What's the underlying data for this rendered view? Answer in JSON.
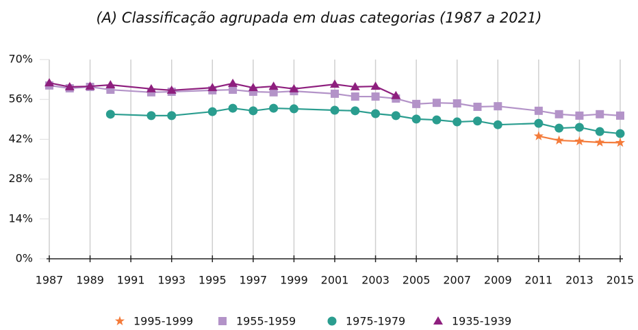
{
  "chart_data": {
    "type": "line",
    "title": "(A) Classificação agrupada em duas categorias (1987 a 2021)",
    "xlim": [
      1987,
      2015
    ],
    "xticks": [
      1987,
      1989,
      1991,
      1993,
      1995,
      1997,
      1999,
      2001,
      2003,
      2005,
      2007,
      2009,
      2011,
      2013,
      2015
    ],
    "ylim": [
      0,
      70
    ],
    "yticks": [
      {
        "value": 0,
        "label": "0%"
      },
      {
        "value": 14,
        "label": "14%"
      },
      {
        "value": 28,
        "label": "28%"
      },
      {
        "value": 42,
        "label": "42%"
      },
      {
        "value": 56,
        "label": "56%"
      },
      {
        "value": 70,
        "label": "70%"
      }
    ],
    "grid": true,
    "legend": "bottom",
    "series": [
      {
        "name": "1995-1999",
        "color": "#f47b3a",
        "marker": "star",
        "x": [
          2011,
          2012,
          2013,
          2014,
          2015
        ],
        "values": [
          43.1,
          41.6,
          41.3,
          40.9,
          40.8
        ]
      },
      {
        "name": "1955-1959",
        "color": "#b393c8",
        "marker": "square",
        "x": [
          1987,
          1988,
          1989,
          1990,
          1992,
          1993,
          1995,
          1996,
          1997,
          1998,
          1999,
          2001,
          2002,
          2003,
          2004,
          2005,
          2006,
          2007,
          2008,
          2009,
          2011,
          2012,
          2013,
          2014,
          2015
        ],
        "values": [
          60.9,
          59.9,
          60.4,
          59.4,
          58.5,
          58.7,
          59.2,
          59.4,
          58.7,
          58.5,
          58.9,
          58.0,
          57.0,
          57.0,
          56.3,
          54.4,
          54.8,
          54.6,
          53.4,
          53.6,
          52.0,
          50.8,
          50.3,
          50.8,
          50.3
        ]
      },
      {
        "name": "1975-1979",
        "color": "#2a9d8f",
        "marker": "circle",
        "x": [
          1990,
          1992,
          1993,
          1995,
          1996,
          1997,
          1998,
          1999,
          2001,
          2002,
          2003,
          2004,
          2005,
          2006,
          2007,
          2008,
          2009,
          2011,
          2012,
          2013,
          2014,
          2015
        ],
        "values": [
          50.8,
          50.3,
          50.3,
          51.7,
          52.9,
          52.0,
          52.9,
          52.7,
          52.2,
          52.0,
          51.0,
          50.3,
          49.1,
          48.8,
          48.1,
          48.4,
          47.1,
          47.6,
          45.9,
          46.2,
          44.7,
          44.0
        ]
      },
      {
        "name": "1935-1939",
        "color": "#8e1f7e",
        "marker": "triangle",
        "x": [
          1987,
          1988,
          1989,
          1990,
          1992,
          1993,
          1995,
          1996,
          1997,
          1998,
          1999,
          2001,
          2002,
          2003,
          2004
        ],
        "values": [
          61.8,
          60.4,
          60.6,
          61.1,
          59.7,
          59.2,
          60.1,
          61.6,
          60.1,
          60.6,
          59.7,
          61.3,
          60.4,
          60.6,
          57.3
        ]
      }
    ]
  }
}
